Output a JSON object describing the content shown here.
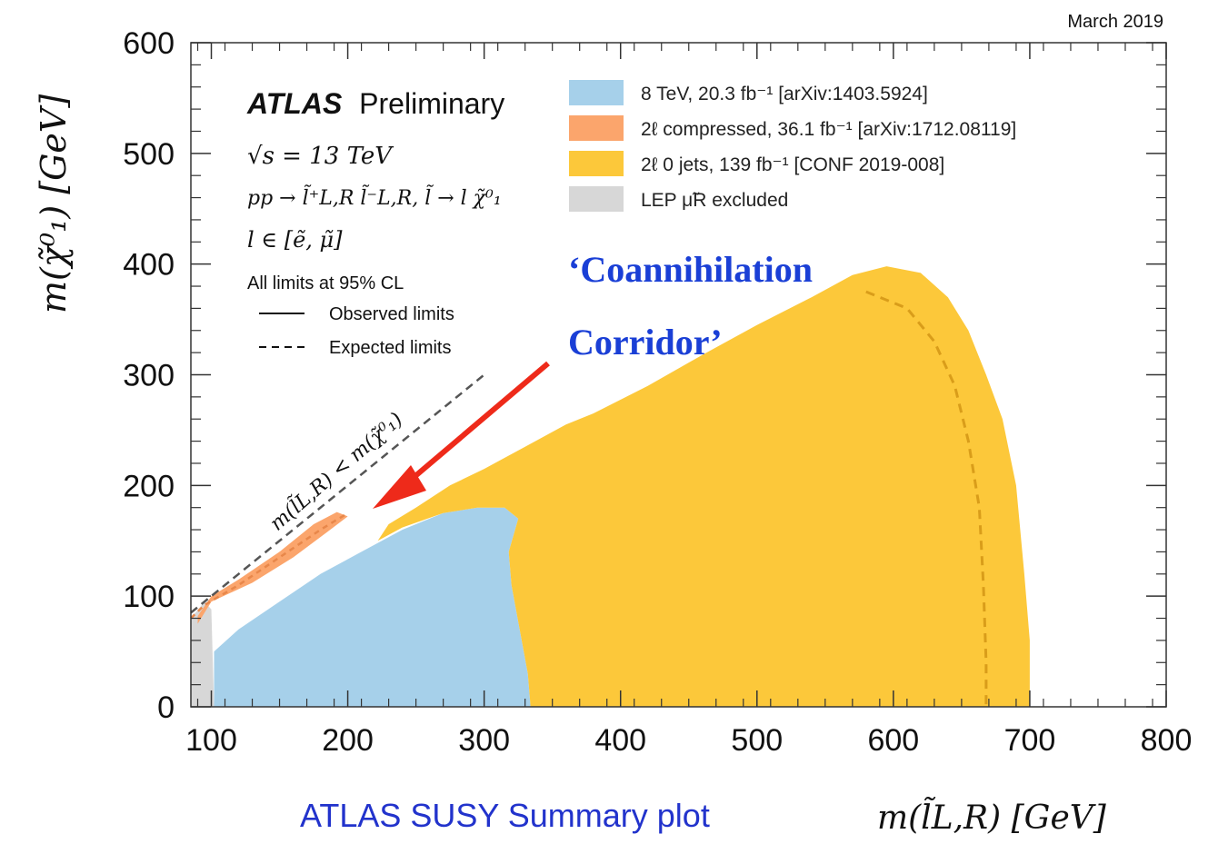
{
  "date": "March 2019",
  "experiment": {
    "name": "ATLAS",
    "status": "Preliminary",
    "energy": "√s = 13 TeV",
    "process": "pp → l̃⁺L,R l̃⁻L,R, l̃ → l χ̃⁰₁",
    "flavours": "l ∈ [ẽ, μ̃]",
    "cl_note": "All limits at 95% CL",
    "observed_label": "Observed limits",
    "expected_label": "Expected limits"
  },
  "annotation": {
    "line1": "‘Coannihilation",
    "line2": "Corridor’",
    "kinematic_label": "m(l̃L,R) < m(χ̃⁰₁)"
  },
  "footer": {
    "caption": "ATLAS SUSY Summary plot",
    "xlabel": "m(l̃L,R) [GeV]"
  },
  "colors": {
    "blue": "#a6d0ea",
    "orange": "#fba56c",
    "yellow": "#fcc83a",
    "grey": "#d7d7d7",
    "annotation": "#1a3fd6",
    "arrow": "#ee2a1a"
  },
  "chart_data": {
    "type": "area",
    "title": "",
    "xlabel": "m(l̃L,R) [GeV]",
    "ylabel": "m(χ̃⁰₁) [GeV]",
    "xlim": [
      85,
      800
    ],
    "ylim": [
      0,
      600
    ],
    "xticks": [
      100,
      200,
      300,
      400,
      500,
      600,
      700,
      800
    ],
    "yticks": [
      0,
      100,
      200,
      300,
      400,
      500,
      600
    ],
    "legend_position": "top-right",
    "grid": false,
    "series": [
      {
        "name": "8 TeV, 20.3 fb⁻¹ [arXiv:1403.5924]",
        "color_key": "blue",
        "polygon": [
          [
            102,
            0
          ],
          [
            102,
            50
          ],
          [
            120,
            70
          ],
          [
            150,
            95
          ],
          [
            180,
            120
          ],
          [
            210,
            140
          ],
          [
            240,
            160
          ],
          [
            270,
            175
          ],
          [
            295,
            180
          ],
          [
            315,
            180
          ],
          [
            325,
            170
          ],
          [
            318,
            140
          ],
          [
            320,
            110
          ],
          [
            326,
            70
          ],
          [
            332,
            30
          ],
          [
            334,
            0
          ]
        ]
      },
      {
        "name": "2ℓ compressed, 36.1 fb⁻¹ [arXiv:1712.08119]",
        "color_key": "orange",
        "polygon": [
          [
            90,
            75
          ],
          [
            100,
            95
          ],
          [
            130,
            112
          ],
          [
            160,
            135
          ],
          [
            185,
            158
          ],
          [
            200,
            172
          ],
          [
            192,
            176
          ],
          [
            175,
            165
          ],
          [
            150,
            140
          ],
          [
            120,
            115
          ],
          [
            100,
            100
          ],
          [
            90,
            82
          ]
        ]
      },
      {
        "name": "2ℓ 0 jets, 139 fb⁻¹ [CONF 2019-008]",
        "color_key": "yellow",
        "polygon": [
          [
            334,
            0
          ],
          [
            332,
            30
          ],
          [
            326,
            70
          ],
          [
            320,
            110
          ],
          [
            318,
            140
          ],
          [
            325,
            170
          ],
          [
            315,
            180
          ],
          [
            295,
            180
          ],
          [
            270,
            175
          ],
          [
            240,
            162
          ],
          [
            222,
            150
          ],
          [
            230,
            165
          ],
          [
            250,
            180
          ],
          [
            275,
            200
          ],
          [
            300,
            215
          ],
          [
            330,
            235
          ],
          [
            360,
            255
          ],
          [
            380,
            265
          ],
          [
            420,
            290
          ],
          [
            460,
            318
          ],
          [
            500,
            345
          ],
          [
            540,
            370
          ],
          [
            570,
            390
          ],
          [
            595,
            398
          ],
          [
            620,
            392
          ],
          [
            640,
            370
          ],
          [
            655,
            340
          ],
          [
            668,
            300
          ],
          [
            680,
            260
          ],
          [
            690,
            200
          ],
          [
            696,
            120
          ],
          [
            700,
            60
          ],
          [
            700,
            0
          ]
        ]
      },
      {
        "name": "LEP μ̃R excluded",
        "color_key": "grey",
        "polygon": [
          [
            85,
            0
          ],
          [
            85,
            80
          ],
          [
            95,
            95
          ],
          [
            100,
            88
          ],
          [
            102,
            0
          ]
        ]
      }
    ],
    "observed_limit": [
      [
        85,
        80
      ],
      [
        95,
        92
      ],
      [
        120,
        110
      ],
      [
        150,
        135
      ],
      [
        180,
        160
      ],
      [
        200,
        175
      ]
    ],
    "expected_limit": [
      [
        580,
        375
      ],
      [
        610,
        360
      ],
      [
        630,
        330
      ],
      [
        645,
        290
      ],
      [
        655,
        240
      ],
      [
        663,
        180
      ],
      [
        666,
        110
      ],
      [
        668,
        40
      ],
      [
        668,
        0
      ]
    ],
    "kinematic_boundary": [
      [
        85,
        85
      ],
      [
        300,
        300
      ]
    ]
  }
}
